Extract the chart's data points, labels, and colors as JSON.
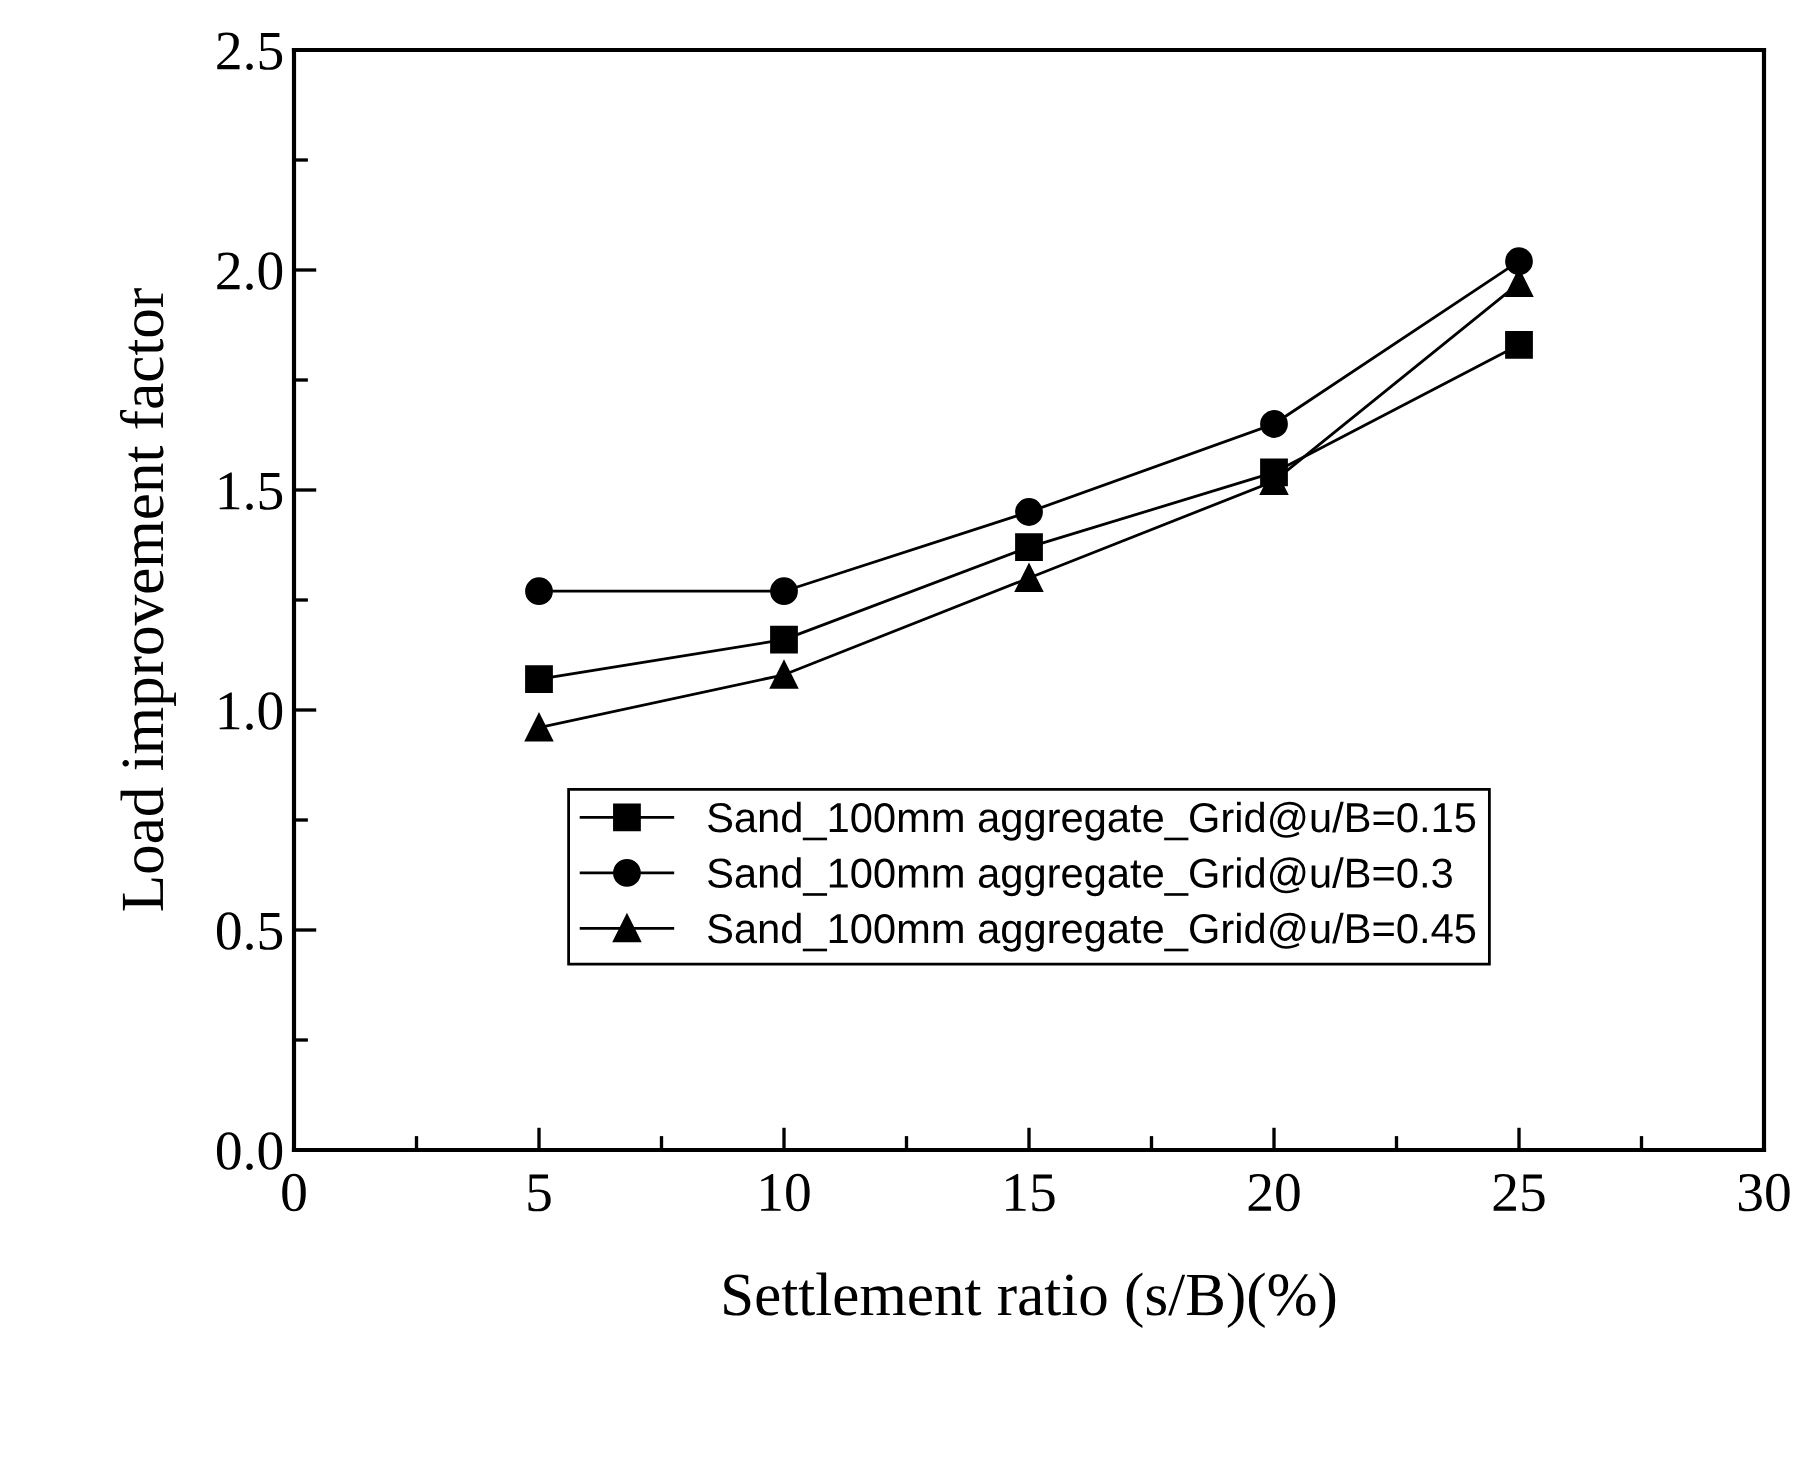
{
  "chart_data": {
    "type": "line",
    "xlabel": "Settlement ratio (s/B)(%)",
    "ylabel": "Load improvement factor",
    "x": [
      5,
      10,
      15,
      20,
      25
    ],
    "series": [
      {
        "name": "Sand_100mm aggregate_Grid@u/B=0.15",
        "color": "#000000",
        "marker": "square",
        "values": [
          1.07,
          1.16,
          1.37,
          1.54,
          1.83
        ]
      },
      {
        "name": "Sand_100mm aggregate_Grid@u/B=0.3",
        "color": "#000000",
        "marker": "circle",
        "values": [
          1.27,
          1.27,
          1.45,
          1.65,
          2.02
        ]
      },
      {
        "name": "Sand_100mm aggregate_Grid@u/B=0.45",
        "color": "#000000",
        "marker": "triangle",
        "values": [
          0.96,
          1.08,
          1.3,
          1.52,
          1.97
        ]
      }
    ],
    "xlim": [
      0,
      30
    ],
    "xticks": [
      0,
      5,
      10,
      15,
      20,
      25,
      30
    ],
    "ylim": [
      0,
      2.5
    ],
    "yticks": [
      {
        "value": 0,
        "label": "0.0"
      },
      0.5,
      {
        "value": 1,
        "label": "1.0"
      },
      1.5,
      {
        "value": 2,
        "label": "2.0"
      },
      2.5
    ],
    "grid": false,
    "legend": "bottom",
    "line_style": "solid"
  }
}
